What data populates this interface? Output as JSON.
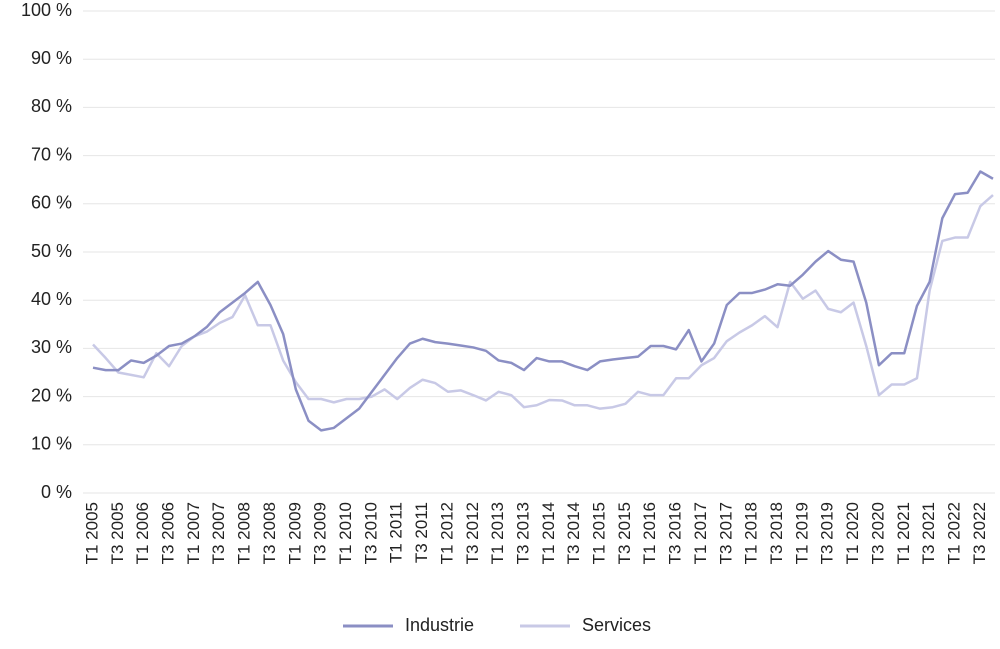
{
  "chart_data": {
    "type": "line",
    "categories": [
      "T1 2005",
      null,
      "T3 2005",
      null,
      "T1 2006",
      null,
      "T3 2006",
      null,
      "T1 2007",
      null,
      "T3 2007",
      null,
      "T1 2008",
      null,
      "T3 2008",
      null,
      "T1 2009",
      null,
      "T3 2009",
      null,
      "T1 2010",
      null,
      "T3 2010",
      null,
      "T1 2011",
      null,
      "T3 2011",
      null,
      "T1 2012",
      null,
      "T3 2012",
      null,
      "T1 2013",
      null,
      "T3 2013",
      null,
      "T1 2014",
      null,
      "T3 2014",
      null,
      "T1 2015",
      null,
      "T3 2015",
      null,
      "T1 2016",
      null,
      "T3 2016",
      null,
      "T1 2017",
      null,
      "T3 2017",
      null,
      "T1 2018",
      null,
      "T3 2018",
      null,
      "T1 2019",
      null,
      "T3 2019",
      null,
      "T1 2020",
      null,
      "T3 2020",
      null,
      "T1 2021",
      null,
      "T3 2021",
      null,
      "T1 2022",
      null,
      "T3 2022",
      null
    ],
    "series": [
      {
        "name": "Industrie",
        "color": "#8b8fc4",
        "values": [
          26,
          25.5,
          25.5,
          27.5,
          27,
          28.5,
          30.5,
          31,
          32.5,
          34.5,
          37.5,
          39.5,
          41.5,
          43.8,
          39,
          33,
          21.5,
          15,
          13,
          13.5,
          15.5,
          17.5,
          21,
          24.5,
          28,
          31,
          32,
          31.3,
          31,
          30.6,
          30.2,
          29.5,
          27.5,
          27,
          25.5,
          28,
          27.3,
          27.3,
          26.3,
          25.5,
          27.3,
          27.7,
          28,
          28.3,
          30.5,
          30.5,
          29.8,
          33.8,
          27.3,
          31,
          39,
          41.5,
          41.5,
          42.2,
          43.3,
          43,
          45.3,
          48,
          50.2,
          48.4,
          48,
          39.5,
          26.5,
          29,
          29,
          38.8,
          43.8,
          57,
          62,
          62.3,
          66.7,
          65.2
        ]
      },
      {
        "name": "Services",
        "color": "#c8c9e6",
        "values": [
          30.8,
          28,
          25,
          24.5,
          24,
          29,
          26.3,
          30.5,
          32.5,
          33.5,
          35.3,
          36.5,
          41,
          34.8,
          34.8,
          27.5,
          23,
          19.5,
          19.5,
          18.8,
          19.5,
          19.5,
          20,
          21.5,
          19.5,
          21.8,
          23.5,
          22.8,
          21,
          21.3,
          20.3,
          19.2,
          21,
          20.3,
          17.8,
          18.2,
          19.3,
          19.2,
          18.2,
          18.2,
          17.5,
          17.8,
          18.5,
          21,
          20.3,
          20.3,
          23.8,
          23.8,
          26.5,
          28,
          31.5,
          33.3,
          34.8,
          36.7,
          34.4,
          43.8,
          40.3,
          42,
          38.2,
          37.5,
          39.5,
          30.5,
          20.3,
          22.5,
          22.5,
          23.8,
          42,
          52.3,
          53,
          53,
          59.5,
          61.8
        ]
      }
    ],
    "ylim": [
      0,
      100
    ],
    "yticks": [
      {
        "value": 0,
        "label": "0 %"
      },
      {
        "value": 10,
        "label": "10 %"
      },
      {
        "value": 20,
        "label": "20 %"
      },
      {
        "value": 30,
        "label": "30 %"
      },
      {
        "value": 40,
        "label": "40 %"
      },
      {
        "value": 50,
        "label": "50 %"
      },
      {
        "value": 60,
        "label": "60 %"
      },
      {
        "value": 70,
        "label": "70 %"
      },
      {
        "value": 80,
        "label": "80 %"
      },
      {
        "value": 90,
        "label": "90 %"
      },
      {
        "value": 100,
        "label": "100 %"
      }
    ],
    "grid": true
  }
}
